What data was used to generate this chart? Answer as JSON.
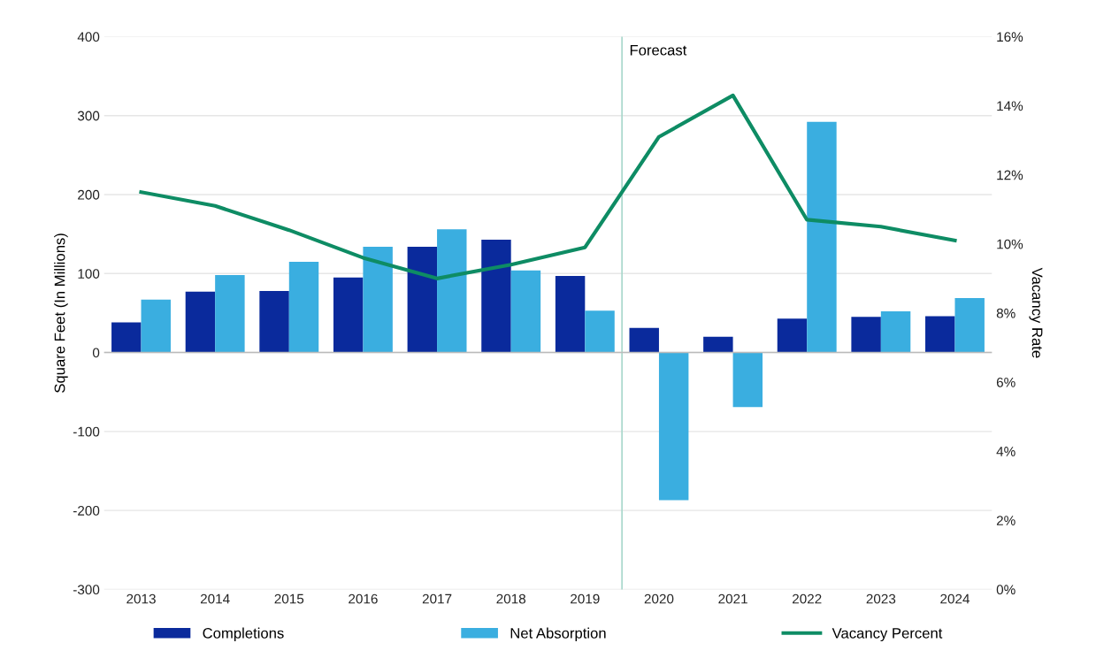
{
  "chart_data": {
    "type": "bar",
    "ylabel": "Square Feet (In Millions)",
    "y2label": "Vacancy Rate",
    "categories": [
      "2013",
      "2014",
      "2015",
      "2016",
      "2017",
      "2018",
      "2019",
      "2020",
      "2021",
      "2022",
      "2023",
      "2024"
    ],
    "series": [
      {
        "name": "Completions",
        "color": "#0a2a9c",
        "values": [
          38,
          77,
          78,
          95,
          134,
          143,
          97,
          31,
          20,
          43,
          45,
          46
        ]
      },
      {
        "name": "Net Absorption",
        "color": "#3aaee0",
        "values": [
          67,
          98,
          115,
          134,
          156,
          104,
          53,
          -187,
          -69,
          292,
          52,
          69
        ]
      },
      {
        "name": "Vacancy Percent",
        "color": "#0e8c64",
        "type": "line",
        "axis": "y2",
        "values": [
          11.5,
          11.1,
          10.4,
          9.6,
          9.0,
          9.4,
          9.9,
          13.1,
          14.3,
          10.7,
          10.5,
          10.1
        ]
      }
    ],
    "ylim": [
      -300,
      400
    ],
    "yticks": [
      -300,
      -200,
      -100,
      0,
      100,
      200,
      300,
      400
    ],
    "y2lim": [
      0,
      16
    ],
    "y2ticks": [
      {
        "value": 0,
        "label": "0%"
      },
      {
        "value": 2,
        "label": "2%"
      },
      {
        "value": 4,
        "label": "4%"
      },
      {
        "value": 6,
        "label": "6%"
      },
      {
        "value": 8,
        "label": "8%"
      },
      {
        "value": 10,
        "label": "10%"
      },
      {
        "value": 12,
        "label": "12%"
      },
      {
        "value": 14,
        "label": "14%"
      },
      {
        "value": 16,
        "label": "16%"
      }
    ],
    "ref_lines": [
      {
        "axis": "x",
        "value": "2020",
        "label": "Forecast",
        "color": "#a8d8cc"
      }
    ],
    "grid": "y",
    "legend": "bottom"
  }
}
